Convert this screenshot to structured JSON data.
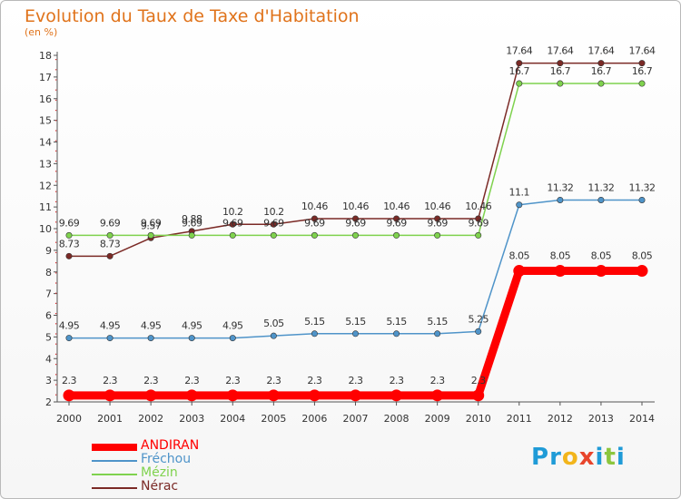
{
  "header": {
    "title": "Evolution du Taux de Taxe d'Habitation",
    "unit": "(en %)"
  },
  "logo": {
    "letters": [
      {
        "char": "P",
        "color": "#1f9bd7"
      },
      {
        "char": "r",
        "color": "#1f9bd7"
      },
      {
        "char": "o",
        "color": "#f2b51c"
      },
      {
        "char": "x",
        "color": "#e8452c"
      },
      {
        "char": "i",
        "color": "#1f9bd7"
      },
      {
        "char": "t",
        "color": "#8cc63e"
      },
      {
        "char": "i",
        "color": "#1f9bd7"
      }
    ]
  },
  "chart_data": {
    "type": "line",
    "title": "Evolution du Taux de Taxe d'Habitation",
    "ylabel": "(en %)",
    "xlabel": "",
    "x": [
      "2000",
      "2001",
      "2002",
      "2003",
      "2004",
      "2005",
      "2006",
      "2007",
      "2008",
      "2009",
      "2010",
      "2011",
      "2012",
      "2013",
      "2014"
    ],
    "ylim": [
      2,
      18
    ],
    "yticks": [
      2,
      3,
      4,
      5,
      6,
      7,
      8,
      9,
      10,
      11,
      12,
      13,
      14,
      15,
      16,
      17,
      18
    ],
    "grid": false,
    "legend_position": "bottom-left",
    "series": [
      {
        "name": "ANDIRAN",
        "color": "#ff0000",
        "labels": [
          "2.3",
          "2.3",
          "2.3",
          "2.3",
          "2.3",
          "2.3",
          "2.3",
          "2.3",
          "2.3",
          "2.3",
          "2.3",
          "8.05",
          "8.05",
          "8.05",
          "8.05"
        ],
        "values": [
          2.3,
          2.3,
          2.3,
          2.3,
          2.3,
          2.3,
          2.3,
          2.3,
          2.3,
          2.3,
          2.3,
          8.05,
          8.05,
          8.05,
          8.05
        ]
      },
      {
        "name": "Fréchou",
        "color": "#4f94c9",
        "labels": [
          "4.95",
          "4.95",
          "4.95",
          "4.95",
          "4.95",
          "5.05",
          "5.15",
          "5.15",
          "5.15",
          "5.15",
          "5.25",
          "11.1",
          "11.32",
          "11.32",
          "11.32"
        ],
        "values": [
          4.95,
          4.95,
          4.95,
          4.95,
          4.95,
          5.05,
          5.15,
          5.15,
          5.15,
          5.15,
          5.25,
          11.1,
          11.32,
          11.32,
          11.32
        ]
      },
      {
        "name": "Mézin",
        "color": "#7fd24e",
        "labels": [
          "9.69",
          "9.69",
          "9.69",
          "9.69",
          "9.69",
          "9.69",
          "9.69",
          "9.69",
          "9.69",
          "9.69",
          "9.69",
          "16.7",
          "16.7",
          "16.7",
          "16.7"
        ],
        "values": [
          9.69,
          9.69,
          9.69,
          9.69,
          9.69,
          9.69,
          9.69,
          9.69,
          9.69,
          9.69,
          9.69,
          16.7,
          16.7,
          16.7,
          16.7
        ]
      },
      {
        "name": "Nérac",
        "color": "#7b2a26",
        "labels": [
          "8.73",
          "8.73",
          "9.57",
          "9.88",
          "10.2",
          "10.2",
          "10.46",
          "10.46",
          "10.46",
          "10.46",
          "10.46",
          "17.64",
          "17.64",
          "17.64",
          "17.64"
        ],
        "values": [
          8.73,
          8.73,
          9.57,
          9.88,
          10.2,
          10.2,
          10.46,
          10.46,
          10.46,
          10.46,
          10.46,
          17.64,
          17.64,
          17.64,
          17.64
        ]
      }
    ]
  }
}
